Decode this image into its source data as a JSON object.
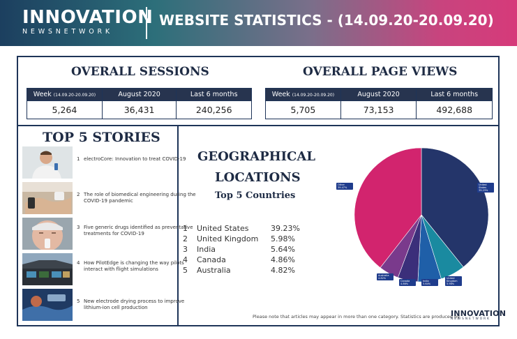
{
  "header": {
    "logo_main": "INNOVATION",
    "logo_sub": "NEWSNETWORK",
    "title": "WEBSITE STATISTICS - (14.09.20-20.09.20)"
  },
  "sessions": {
    "title": "OVERALL SESSIONS",
    "col1_label": "Week",
    "col1_sub": "(14.09.20-20.09.20)",
    "col2_label": "August 2020",
    "col3_label": "Last 6 months",
    "values": [
      "5,264",
      "36,431",
      "240,256"
    ]
  },
  "pageviews": {
    "title": "OVERALL PAGE VIEWS",
    "col1_label": "Week",
    "col1_sub": "(14.09.20-20.09.20)",
    "col2_label": "August 2020",
    "col3_label": "Last 6 months",
    "values": [
      "5,705",
      "73,153",
      "492,688"
    ]
  },
  "stories": {
    "title": "TOP 5 STORIES",
    "items": [
      {
        "num": "1",
        "text": "electroCore: Innovation to treat COVID-19"
      },
      {
        "num": "2",
        "text": "The role of biomedical engineering during the COVID-19 pandemic"
      },
      {
        "num": "3",
        "text": "Five generic drugs identified as preventative treatments for COVID-19"
      },
      {
        "num": "4",
        "text": "How PilotEdge is changing the way pilots interact with flight simulations"
      },
      {
        "num": "5",
        "text": "New electrode drying process to improve lithium-ion cell production"
      }
    ]
  },
  "geo": {
    "title_line1": "GEOGRAPHICAL",
    "title_line2": "LOCATIONS",
    "subtitle": "Top 5 Countries",
    "countries": [
      {
        "num": "1",
        "name": "United States",
        "pct": "39.23%"
      },
      {
        "num": "2",
        "name": "United Kingdom",
        "pct": "5.98%"
      },
      {
        "num": "3",
        "name": "India",
        "pct": "5.64%"
      },
      {
        "num": "4",
        "name": "Canada",
        "pct": "4.86%"
      },
      {
        "num": "5",
        "name": "Australia",
        "pct": "4.82%"
      }
    ]
  },
  "chart_data": {
    "type": "pie",
    "categories": [
      "United States",
      "United Kingdom",
      "India",
      "Canada",
      "Australia",
      "Other"
    ],
    "values": [
      39.23,
      5.98,
      5.64,
      4.86,
      4.82,
      39.47
    ],
    "labels": [
      "United States 39.23%",
      "United Kingdom 5.98%",
      "India 5.64%",
      "Canada 4.86%",
      "Australia 4.82%",
      "Other 39.47%"
    ],
    "colors": [
      "#24356a",
      "#1a8aa0",
      "#1f5fa8",
      "#3b2f7a",
      "#7a3a8c",
      "#d2246e"
    ]
  },
  "footer": {
    "note": "Please note that articles may appear in more than one category. Statistics are produced by",
    "logo_main": "INNOVATION",
    "logo_sub": "NEWSNETWORK"
  }
}
